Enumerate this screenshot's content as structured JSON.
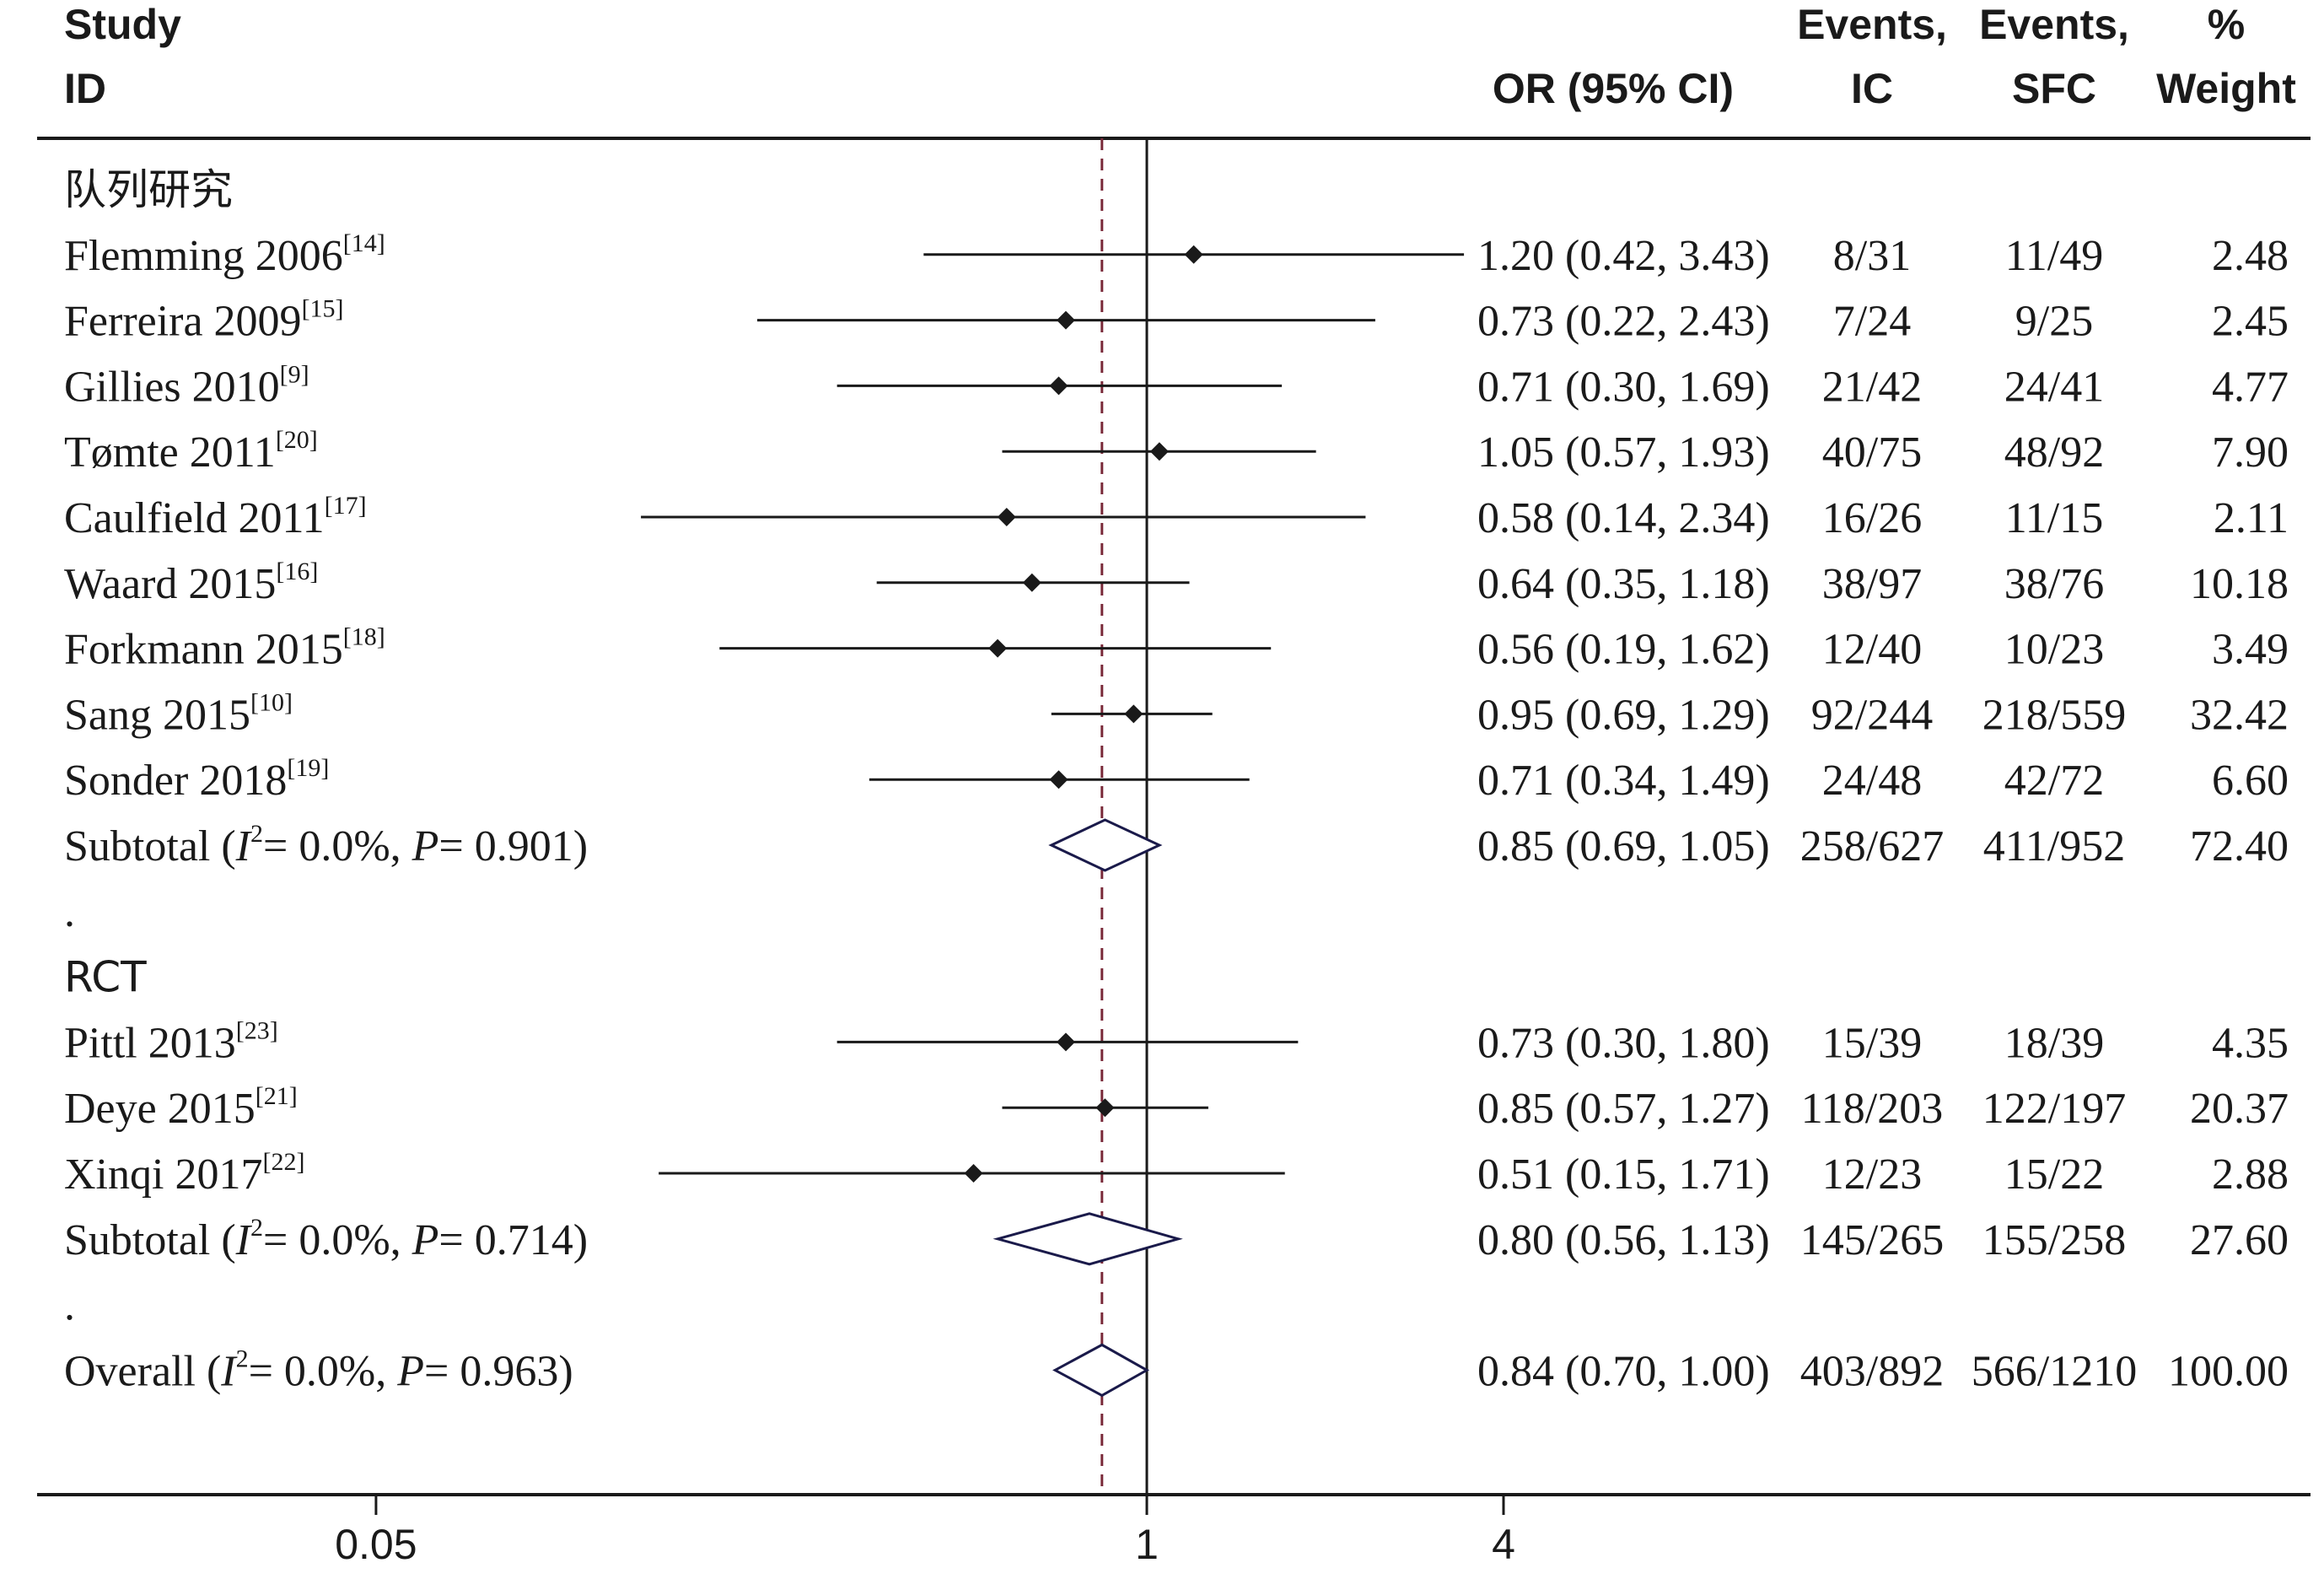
{
  "headers": {
    "study_line1": "Study",
    "study_line2": "ID",
    "or": "OR (95% CI)",
    "ic_line1": "Events,",
    "ic_line2": "IC",
    "sfc_line1": "Events,",
    "sfc_line2": "SFC",
    "weight_line1": "%",
    "weight_line2": "Weight"
  },
  "colors": {
    "reference_line": "#7a2a3a",
    "axis": "#1a1a1a",
    "diamond_stroke": "#1a1a4a"
  },
  "chart_data": {
    "type": "forest",
    "x_axis_scale": "log",
    "x_ticks": [
      "0.05",
      "1",
      "4"
    ],
    "x_range": [
      0.05,
      4
    ],
    "null_line": 1,
    "overall_estimate_line": 0.84,
    "rows": [
      {
        "kind": "group",
        "label": "队列研究"
      },
      {
        "kind": "study",
        "name": "Flemming 2006",
        "ref": "[14]",
        "or": 1.2,
        "lo": 0.42,
        "hi": 3.43,
        "or_text": "1.20 (0.42, 3.43)",
        "ic": "8/31",
        "sfc": "11/49",
        "weight": "2.48"
      },
      {
        "kind": "study",
        "name": "Ferreira 2009",
        "ref": "[15]",
        "or": 0.73,
        "lo": 0.22,
        "hi": 2.43,
        "or_text": "0.73 (0.22, 2.43)",
        "ic": "7/24",
        "sfc": "9/25",
        "weight": "2.45"
      },
      {
        "kind": "study",
        "name": "Gillies 2010",
        "ref": "[9]",
        "or": 0.71,
        "lo": 0.3,
        "hi": 1.69,
        "or_text": "0.71 (0.30, 1.69)",
        "ic": "21/42",
        "sfc": "24/41",
        "weight": "4.77"
      },
      {
        "kind": "study",
        "name": "Tømte 2011",
        "ref": "[20]",
        "or": 1.05,
        "lo": 0.57,
        "hi": 1.93,
        "or_text": "1.05 (0.57, 1.93)",
        "ic": "40/75",
        "sfc": "48/92",
        "weight": "7.90"
      },
      {
        "kind": "study",
        "name": "Caulfield 2011",
        "ref": "[17]",
        "or": 0.58,
        "lo": 0.14,
        "hi": 2.34,
        "or_text": "0.58 (0.14, 2.34)",
        "ic": "16/26",
        "sfc": "11/15",
        "weight": "2.11"
      },
      {
        "kind": "study",
        "name": "Waard 2015",
        "ref": "[16]",
        "or": 0.64,
        "lo": 0.35,
        "hi": 1.18,
        "or_text": "0.64 (0.35, 1.18)",
        "ic": "38/97",
        "sfc": "38/76",
        "weight": "10.18"
      },
      {
        "kind": "study",
        "name": "Forkmann 2015",
        "ref": "[18]",
        "or": 0.56,
        "lo": 0.19,
        "hi": 1.62,
        "or_text": "0.56 (0.19, 1.62)",
        "ic": "12/40",
        "sfc": "10/23",
        "weight": "3.49"
      },
      {
        "kind": "study",
        "name": "Sang 2015",
        "ref": "[10]",
        "or": 0.95,
        "lo": 0.69,
        "hi": 1.29,
        "or_text": "0.95 (0.69, 1.29)",
        "ic": "92/244",
        "sfc": "218/559",
        "weight": "32.42"
      },
      {
        "kind": "study",
        "name": "Sonder 2018",
        "ref": "[19]",
        "or": 0.71,
        "lo": 0.34,
        "hi": 1.49,
        "or_text": "0.71 (0.34, 1.49)",
        "ic": "24/48",
        "sfc": "42/72",
        "weight": "6.60"
      },
      {
        "kind": "summary",
        "prefix": "Subtotal",
        "i2": "0.0%",
        "p": "0.901",
        "or": 0.85,
        "lo": 0.69,
        "hi": 1.05,
        "or_text": "0.85 (0.69, 1.05)",
        "ic": "258/627",
        "sfc": "411/952",
        "weight": "72.40"
      },
      {
        "kind": "spacer",
        "label": "."
      },
      {
        "kind": "group",
        "label": "RCT"
      },
      {
        "kind": "study",
        "name": "Pittl 2013",
        "ref": "[23]",
        "or": 0.73,
        "lo": 0.3,
        "hi": 1.8,
        "or_text": "0.73 (0.30, 1.80)",
        "ic": "15/39",
        "sfc": "18/39",
        "weight": "4.35"
      },
      {
        "kind": "study",
        "name": "Deye 2015",
        "ref": "[21]",
        "or": 0.85,
        "lo": 0.57,
        "hi": 1.27,
        "or_text": "0.85 (0.57, 1.27)",
        "ic": "118/203",
        "sfc": "122/197",
        "weight": "20.37"
      },
      {
        "kind": "study",
        "name": "Xinqi 2017",
        "ref": "[22]",
        "or": 0.51,
        "lo": 0.15,
        "hi": 1.71,
        "or_text": "0.51 (0.15, 1.71)",
        "ic": "12/23",
        "sfc": "15/22",
        "weight": "2.88"
      },
      {
        "kind": "summary",
        "prefix": "Subtotal",
        "i2": "0.0%",
        "p": "0.714",
        "or": 0.8,
        "lo": 0.56,
        "hi": 1.13,
        "or_text": "0.80 (0.56, 1.13)",
        "ic": "145/265",
        "sfc": "155/258",
        "weight": "27.60"
      },
      {
        "kind": "spacer",
        "label": "."
      },
      {
        "kind": "summary",
        "prefix": "Overall",
        "i2": "0.0%",
        "p": "0.963",
        "or": 0.84,
        "lo": 0.7,
        "hi": 1.0,
        "or_text": "0.84 (0.70, 1.00)",
        "ic": "403/892",
        "sfc": "566/1210",
        "weight": "100.00"
      }
    ]
  }
}
